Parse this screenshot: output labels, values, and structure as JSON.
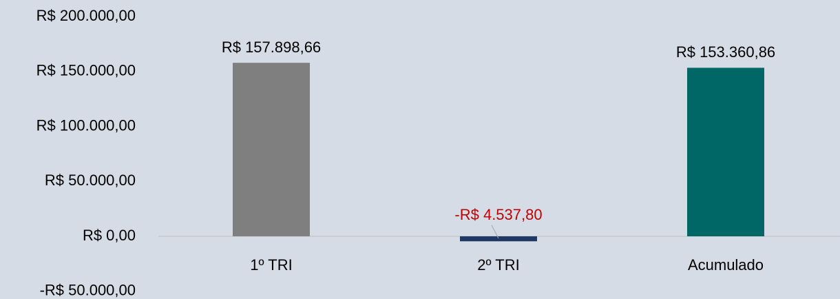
{
  "chart_data": {
    "type": "bar",
    "categories": [
      "1º TRI",
      "2º TRI",
      "Acumulado"
    ],
    "values": [
      157898.66,
      -4537.8,
      153360.86
    ],
    "value_labels": [
      "R$ 157.898,66",
      "-R$ 4.537,80",
      "R$ 153.360,86"
    ],
    "colors": [
      "#7f7f7f",
      "#1f3864",
      "#006766"
    ],
    "label_colors": [
      "#000000",
      "#c00000",
      "#000000"
    ],
    "ylim": [
      -50000,
      200000
    ],
    "yticks": [
      {
        "value": -50000,
        "label": "-R$ 50.000,00"
      },
      {
        "value": 0,
        "label": "R$ 0,00"
      },
      {
        "value": 50000,
        "label": "R$ 50.000,00"
      },
      {
        "value": 100000,
        "label": "R$ 100.000,00"
      },
      {
        "value": 150000,
        "label": "R$ 150.000,00"
      },
      {
        "value": 200000,
        "label": "R$ 200.000,00"
      }
    ],
    "grid": false
  }
}
